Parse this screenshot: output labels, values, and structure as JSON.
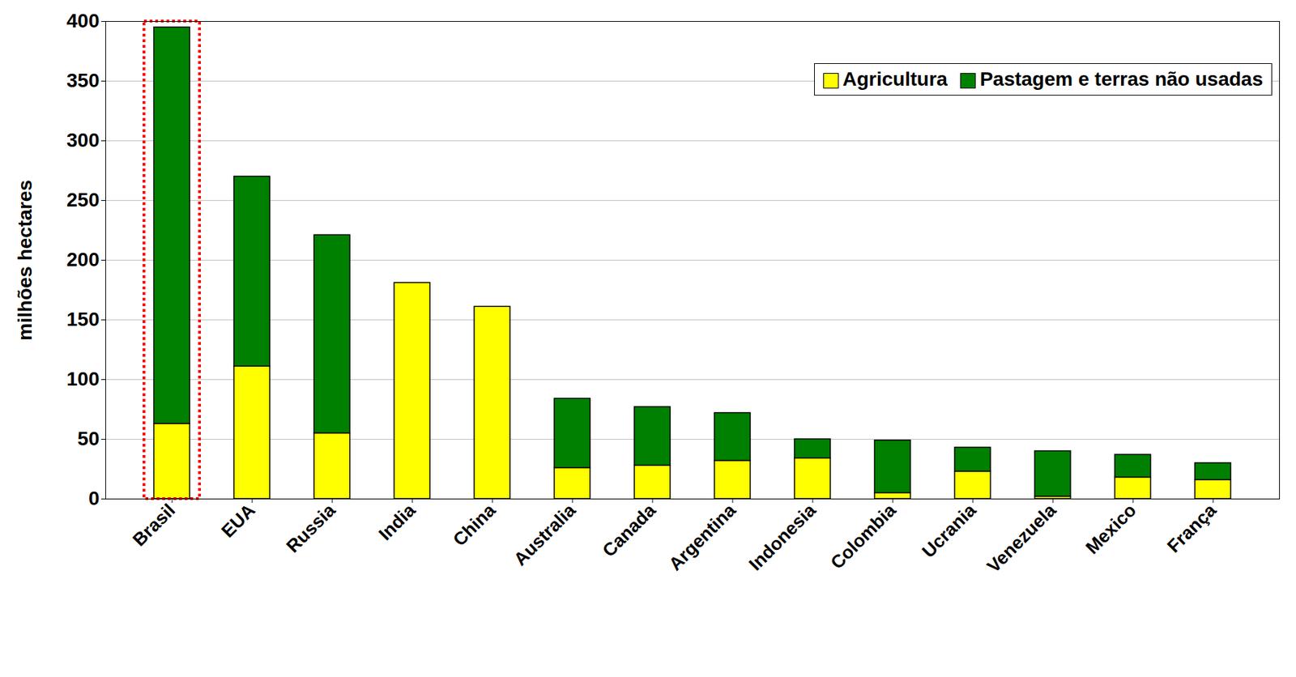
{
  "chart_data": {
    "type": "bar",
    "stacked": true,
    "grid": true,
    "legend": "top-right",
    "y_label": "milhões hectares",
    "categories": [
      "Brasil",
      "EUA",
      "Russia",
      "India",
      "China",
      "Australia",
      "Canada",
      "Argentina",
      "Indonesia",
      "Colombia",
      "Ucrania",
      "Venezuela",
      "Mexico",
      "França"
    ],
    "series": [
      {
        "name": "Agricultura",
        "color": "#ffff00",
        "values": [
          63,
          111,
          55,
          181,
          161,
          26,
          28,
          32,
          34,
          5,
          23,
          2,
          18,
          16
        ]
      },
      {
        "name": "Pastagem e terras não usadas",
        "color": "#008000",
        "values": [
          332,
          159,
          166,
          0,
          0,
          58,
          49,
          40,
          16,
          44,
          20,
          38,
          19,
          14
        ]
      }
    ],
    "ylim": [
      0,
      400
    ],
    "yticks": [
      0,
      50,
      100,
      150,
      200,
      250,
      300,
      350,
      400
    ]
  }
}
